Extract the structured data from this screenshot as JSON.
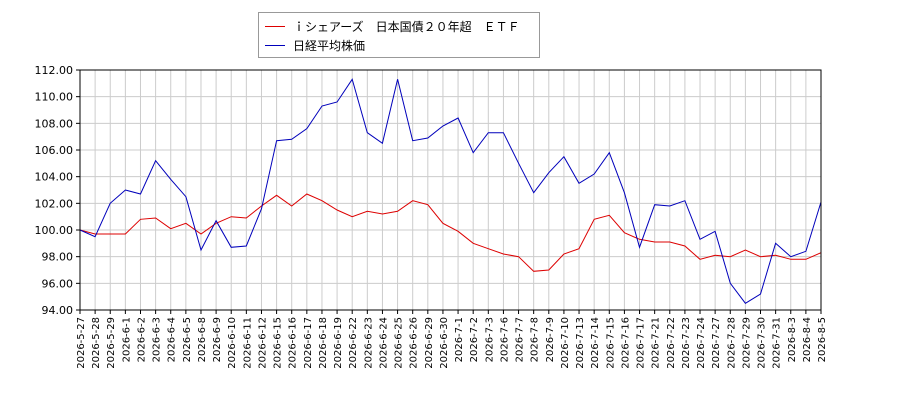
{
  "chart_data": {
    "type": "line",
    "title": "",
    "xlabel": "",
    "ylabel": "",
    "ylim": [
      94.0,
      112.0
    ],
    "yticks": [
      "94.00",
      "96.00",
      "98.00",
      "100.00",
      "102.00",
      "104.00",
      "106.00",
      "108.00",
      "110.00",
      "112.00"
    ],
    "grid": true,
    "legend_placement": "top-center",
    "categories": [
      "2026-5-27",
      "2026-5-28",
      "2026-5-29",
      "2026-6-1",
      "2026-6-2",
      "2026-6-3",
      "2026-6-4",
      "2026-6-5",
      "2026-6-8",
      "2026-6-9",
      "2026-6-10",
      "2026-6-11",
      "2026-6-12",
      "2026-6-15",
      "2026-6-16",
      "2026-6-17",
      "2026-6-18",
      "2026-6-19",
      "2026-6-22",
      "2026-6-23",
      "2026-6-24",
      "2026-6-25",
      "2026-6-26",
      "2026-6-29",
      "2026-6-30",
      "2026-7-1",
      "2026-7-2",
      "2026-7-3",
      "2026-7-6",
      "2026-7-7",
      "2026-7-8",
      "2026-7-9",
      "2026-7-10",
      "2026-7-13",
      "2026-7-14",
      "2026-7-15",
      "2026-7-16",
      "2026-7-17",
      "2026-7-21",
      "2026-7-22",
      "2026-7-23",
      "2026-7-24",
      "2026-7-27",
      "2026-7-28",
      "2026-7-29",
      "2026-7-30",
      "2026-7-31",
      "2026-8-3",
      "2026-8-4",
      "2026-8-5"
    ],
    "series": [
      {
        "name": "ｉシェアーズ　日本国債２０年超　ＥＴＦ",
        "color": "#dd0000",
        "values": [
          100.0,
          99.7,
          99.7,
          99.7,
          100.8,
          100.9,
          100.1,
          100.5,
          99.7,
          100.5,
          101.0,
          100.9,
          101.8,
          102.6,
          101.8,
          102.7,
          102.2,
          101.5,
          101.0,
          101.4,
          101.2,
          101.4,
          102.2,
          101.9,
          100.5,
          99.9,
          99.0,
          98.6,
          98.2,
          98.0,
          96.9,
          97.0,
          98.2,
          98.6,
          100.8,
          101.1,
          99.8,
          99.3,
          99.1,
          99.1,
          98.8,
          97.8,
          98.1,
          98.0,
          98.5,
          98.0,
          98.1,
          97.8,
          97.8,
          98.3
        ]
      },
      {
        "name": "日経平均株価",
        "color": "#0000bb",
        "values": [
          100.0,
          99.5,
          102.0,
          103.0,
          102.7,
          105.2,
          103.8,
          102.5,
          98.5,
          100.7,
          98.7,
          98.8,
          101.6,
          106.7,
          106.8,
          107.6,
          109.3,
          109.6,
          111.3,
          107.3,
          106.5,
          111.3,
          106.7,
          106.9,
          107.8,
          108.4,
          105.8,
          107.3,
          107.3,
          105.0,
          102.8,
          104.3,
          105.5,
          103.5,
          104.2,
          105.8,
          102.8,
          98.7,
          101.9,
          101.8,
          102.2,
          99.3,
          99.9,
          96.0,
          94.5,
          95.2,
          99.0,
          98.0,
          98.4,
          102.1
        ]
      }
    ]
  }
}
